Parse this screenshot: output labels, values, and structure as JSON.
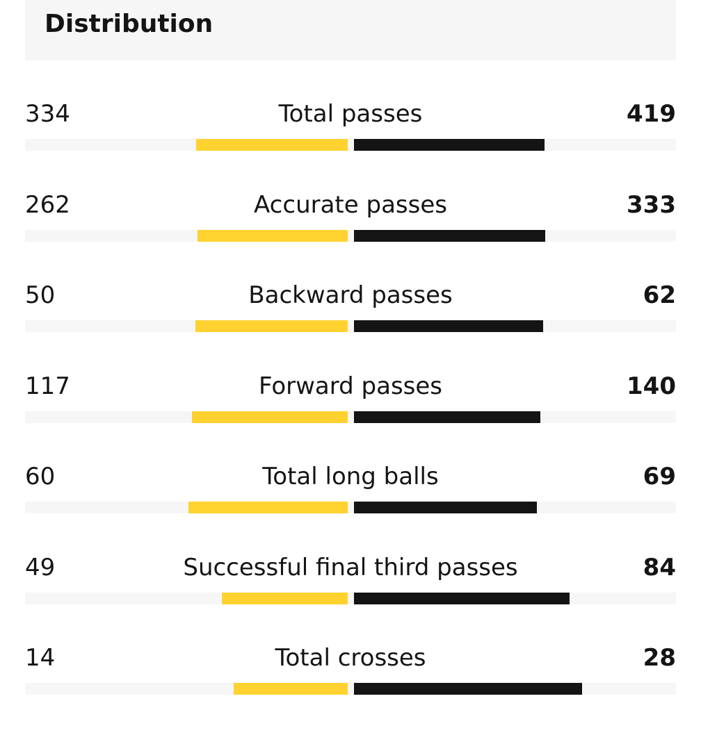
{
  "section": {
    "title": "Distribution"
  },
  "colors": {
    "home": "#ffd230",
    "away": "#141414",
    "track": "#f6f6f6",
    "header_bg": "#f6f6f6"
  },
  "stats": [
    {
      "label": "Total passes",
      "home": 334,
      "away": 419
    },
    {
      "label": "Accurate passes",
      "home": 262,
      "away": 333
    },
    {
      "label": "Backward passes",
      "home": 50,
      "away": 62
    },
    {
      "label": "Forward passes",
      "home": 117,
      "away": 140
    },
    {
      "label": "Total long balls",
      "home": 60,
      "away": 69
    },
    {
      "label": "Successful final third passes",
      "home": 49,
      "away": 84
    },
    {
      "label": "Total crosses",
      "home": 14,
      "away": 28
    }
  ]
}
